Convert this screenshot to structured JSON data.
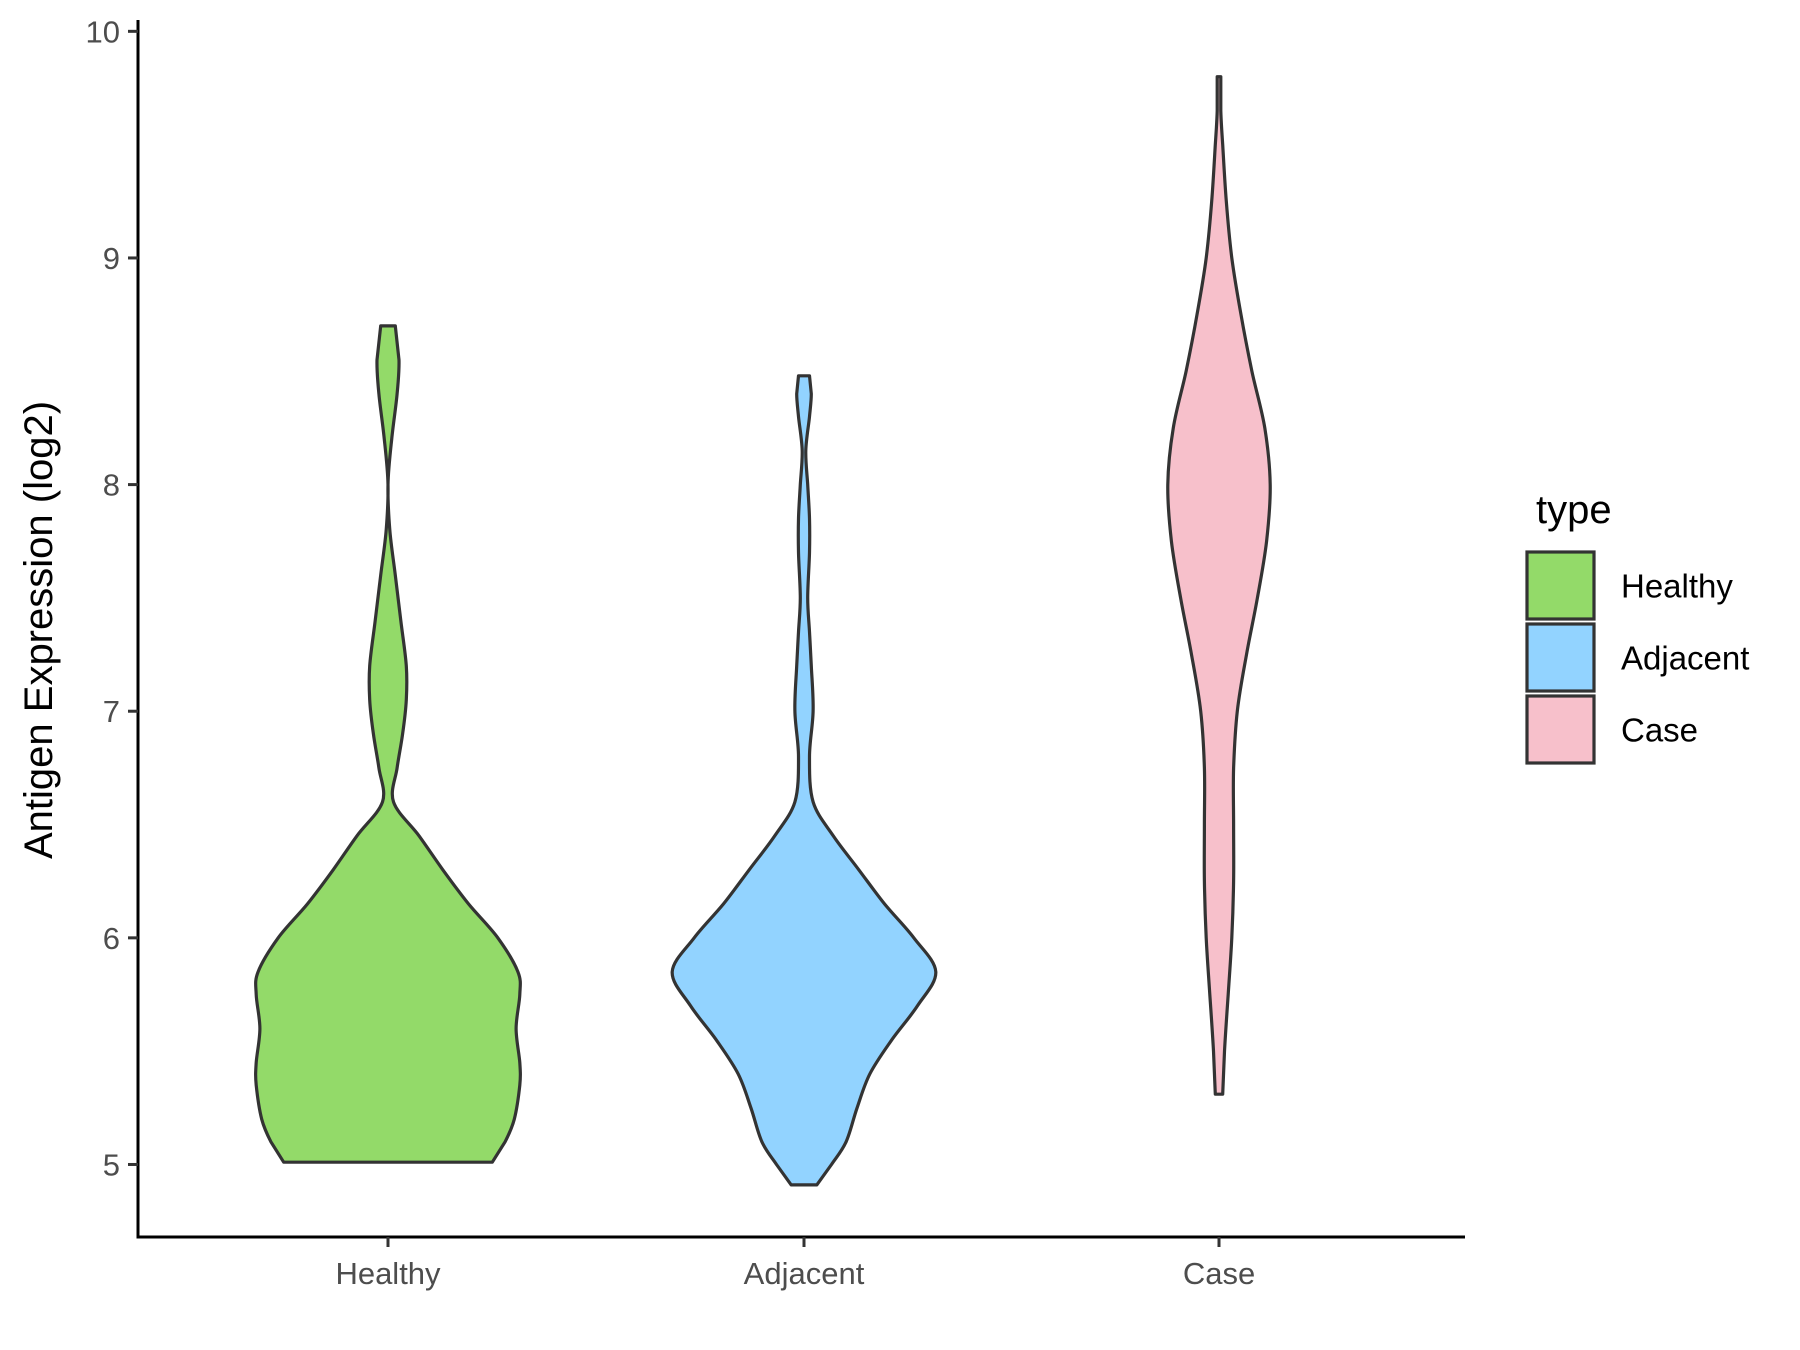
{
  "chart_data": {
    "type": "violin",
    "title": "",
    "xlabel": "",
    "ylabel": "Antigen Expression (log2)",
    "categories": [
      "Healthy",
      "Adjacent",
      "Case"
    ],
    "y_ticks": [
      "5",
      "6",
      "7",
      "8",
      "9",
      "10"
    ],
    "ylim": [
      4.68,
      10.05
    ],
    "legend": {
      "title": "type",
      "placement": "right",
      "entries": [
        "Healthy",
        "Adjacent",
        "Case"
      ]
    },
    "colors": {
      "Healthy": "#93DA69",
      "Adjacent": "#92D3FF",
      "Case": "#F7C0CB",
      "outline": "#333333"
    },
    "series": [
      {
        "category": "Healthy",
        "min": 5.01,
        "max": 8.7,
        "density": [
          [
            5.01,
            0.57
          ],
          [
            5.1,
            0.64
          ],
          [
            5.2,
            0.69
          ],
          [
            5.35,
            0.72
          ],
          [
            5.45,
            0.72
          ],
          [
            5.6,
            0.7
          ],
          [
            5.75,
            0.72
          ],
          [
            5.85,
            0.71
          ],
          [
            6.0,
            0.6
          ],
          [
            6.15,
            0.44
          ],
          [
            6.3,
            0.3
          ],
          [
            6.45,
            0.17
          ],
          [
            6.6,
            0.03
          ],
          [
            6.75,
            0.05
          ],
          [
            6.9,
            0.08
          ],
          [
            7.05,
            0.1
          ],
          [
            7.2,
            0.1
          ],
          [
            7.4,
            0.07
          ],
          [
            7.6,
            0.04
          ],
          [
            7.8,
            0.01
          ],
          [
            8.0,
            0.0
          ],
          [
            8.2,
            0.02
          ],
          [
            8.4,
            0.05
          ],
          [
            8.55,
            0.06
          ],
          [
            8.7,
            0.04
          ]
        ]
      },
      {
        "category": "Adjacent",
        "min": 4.91,
        "max": 8.48,
        "density": [
          [
            4.91,
            0.07
          ],
          [
            5.0,
            0.15
          ],
          [
            5.1,
            0.23
          ],
          [
            5.25,
            0.29
          ],
          [
            5.4,
            0.36
          ],
          [
            5.55,
            0.48
          ],
          [
            5.7,
            0.62
          ],
          [
            5.85,
            0.72
          ],
          [
            6.0,
            0.6
          ],
          [
            6.15,
            0.44
          ],
          [
            6.3,
            0.3
          ],
          [
            6.45,
            0.16
          ],
          [
            6.6,
            0.05
          ],
          [
            6.8,
            0.03
          ],
          [
            7.0,
            0.05
          ],
          [
            7.2,
            0.04
          ],
          [
            7.35,
            0.03
          ],
          [
            7.5,
            0.02
          ],
          [
            7.7,
            0.03
          ],
          [
            7.85,
            0.03
          ],
          [
            8.0,
            0.02
          ],
          [
            8.15,
            0.01
          ],
          [
            8.3,
            0.03
          ],
          [
            8.4,
            0.04
          ],
          [
            8.48,
            0.03
          ]
        ]
      },
      {
        "category": "Case",
        "min": 5.31,
        "max": 9.8,
        "density": [
          [
            5.31,
            0.02
          ],
          [
            5.5,
            0.03
          ],
          [
            5.75,
            0.05
          ],
          [
            6.0,
            0.07
          ],
          [
            6.25,
            0.08
          ],
          [
            6.5,
            0.08
          ],
          [
            6.75,
            0.08
          ],
          [
            7.0,
            0.1
          ],
          [
            7.25,
            0.15
          ],
          [
            7.5,
            0.21
          ],
          [
            7.75,
            0.26
          ],
          [
            8.0,
            0.28
          ],
          [
            8.25,
            0.25
          ],
          [
            8.5,
            0.18
          ],
          [
            8.75,
            0.12
          ],
          [
            9.0,
            0.07
          ],
          [
            9.25,
            0.04
          ],
          [
            9.5,
            0.02
          ],
          [
            9.65,
            0.01
          ],
          [
            9.8,
            0.01
          ]
        ]
      }
    ]
  }
}
